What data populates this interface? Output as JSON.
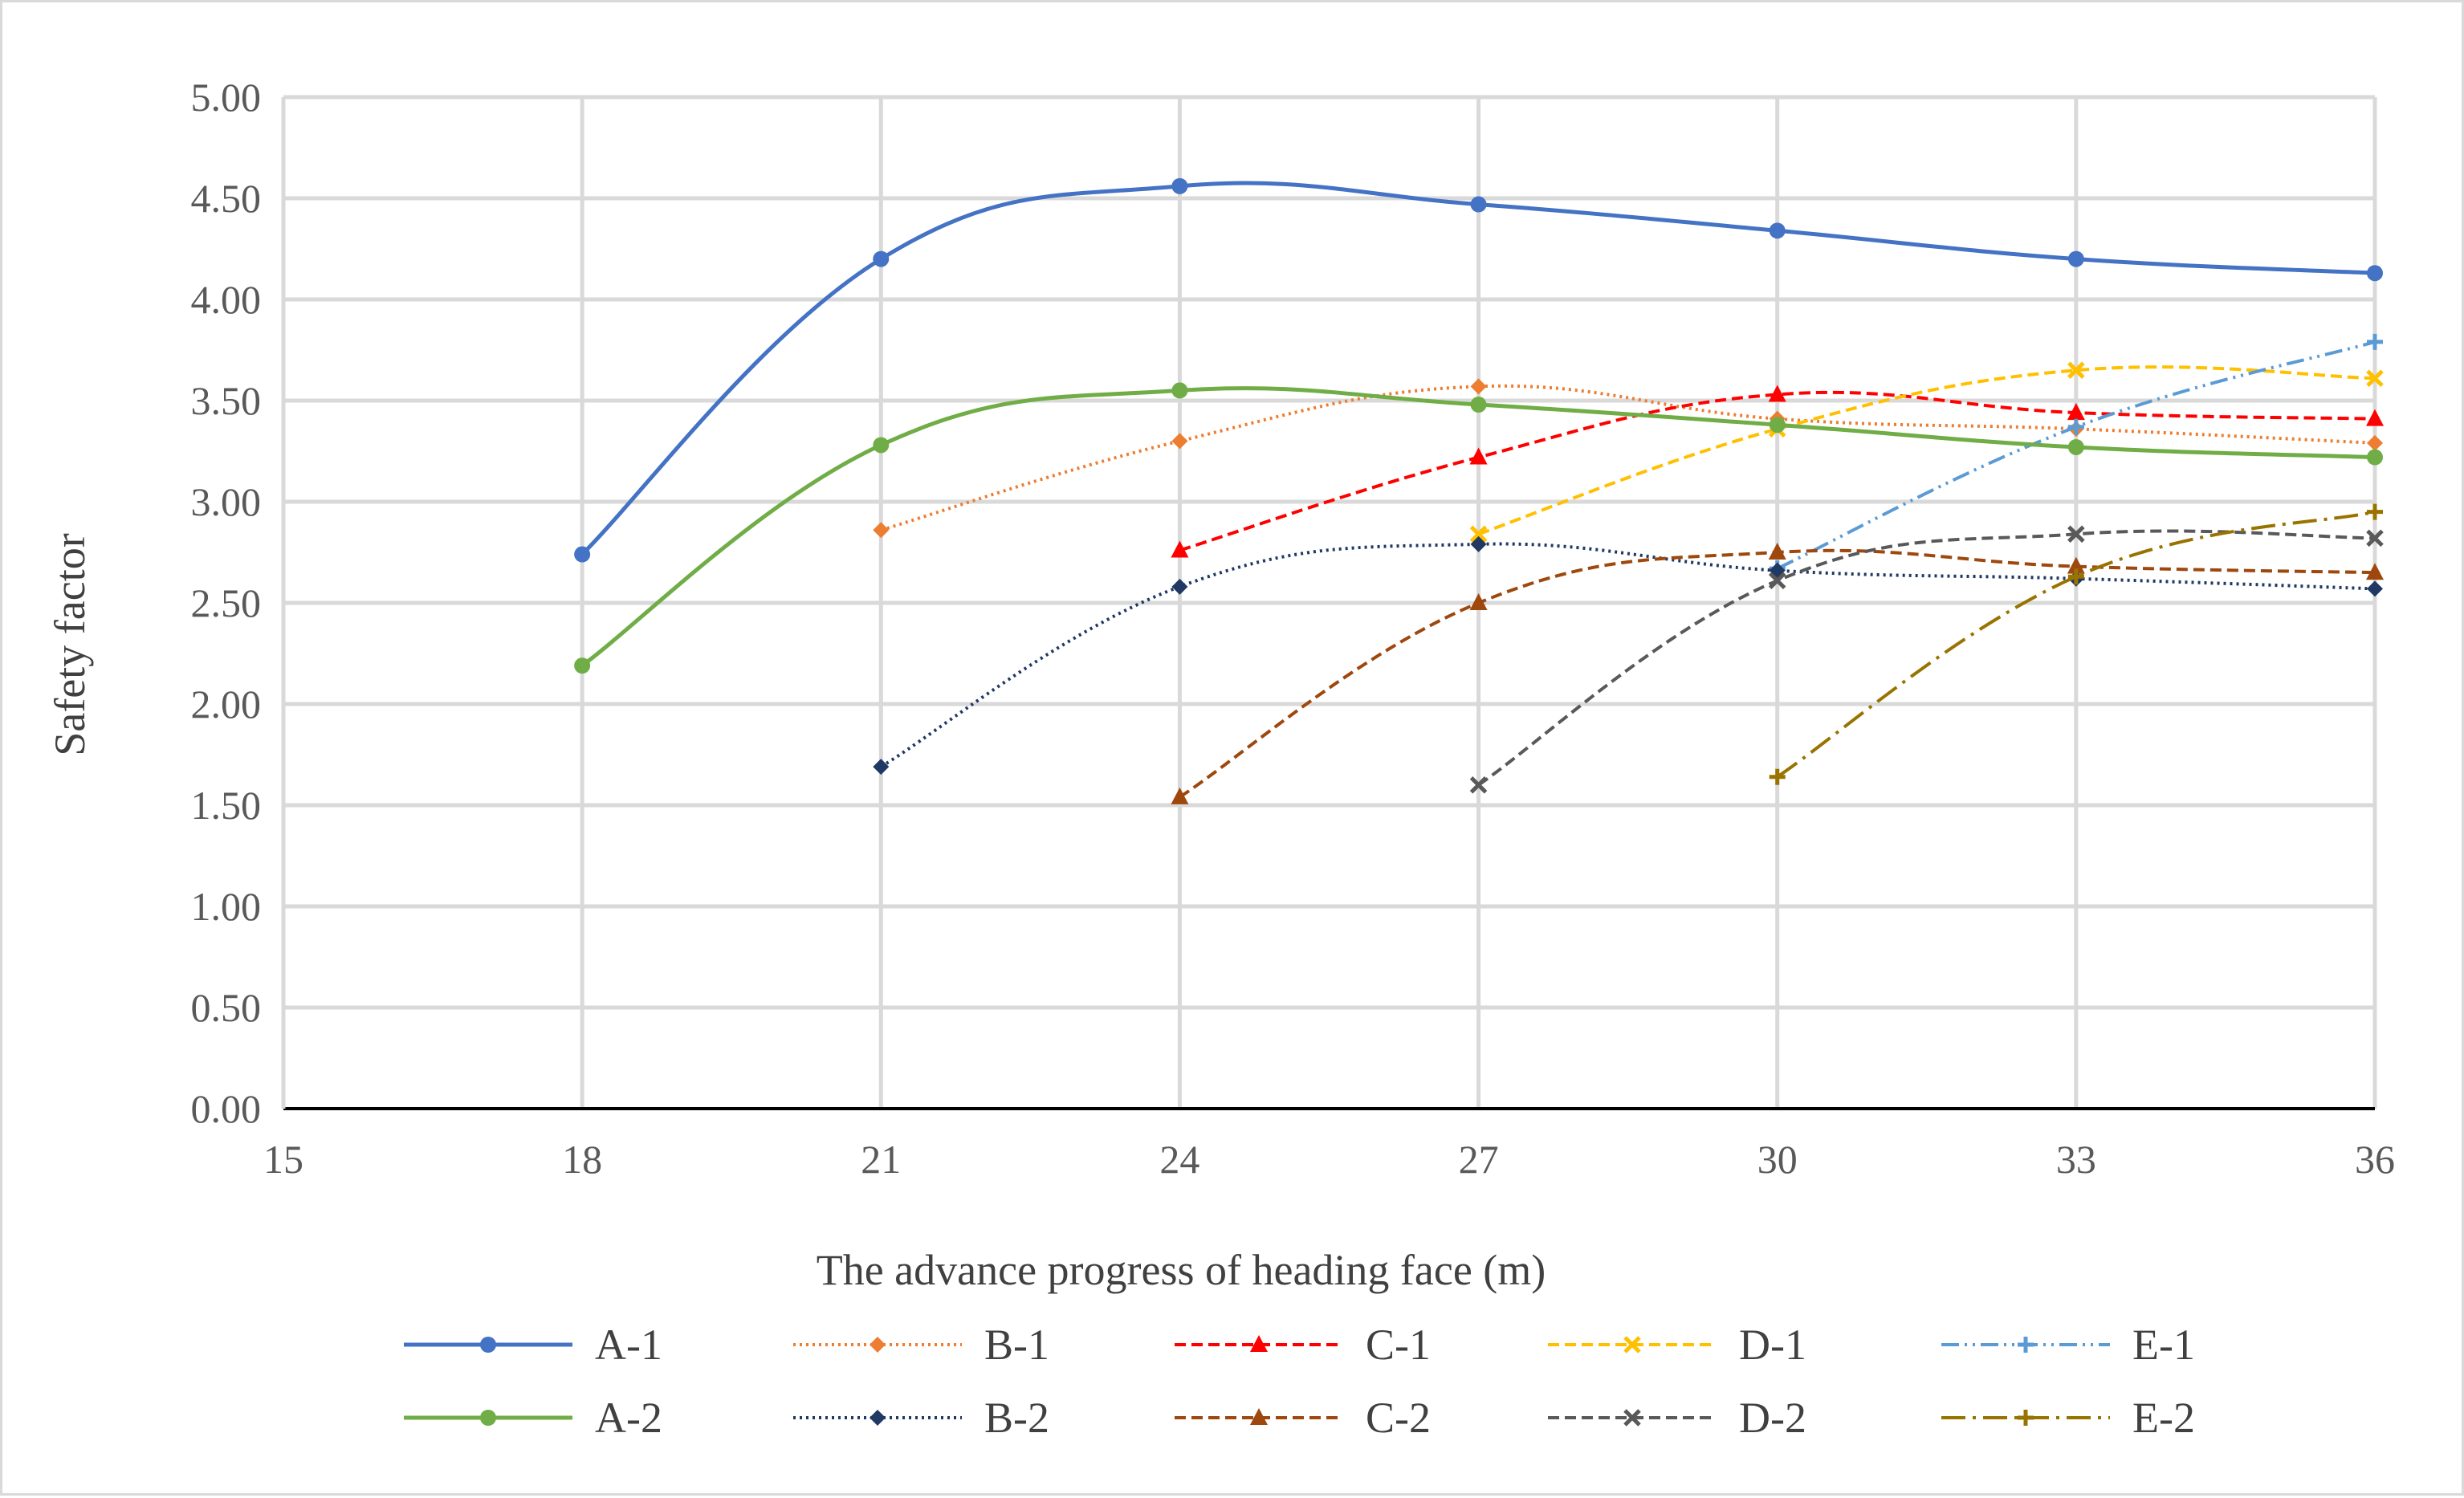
{
  "chart_data": {
    "type": "line",
    "title": "",
    "xlabel": "The advance progress of heading face (m)",
    "ylabel": "Safety factor",
    "xlim": [
      15,
      36
    ],
    "ylim": [
      0,
      5
    ],
    "x_ticks": [
      15,
      18,
      21,
      24,
      27,
      30,
      33,
      36
    ],
    "y_ticks": [
      "0.00",
      "0.50",
      "1.00",
      "1.50",
      "2.00",
      "2.50",
      "3.00",
      "3.50",
      "4.00",
      "4.50",
      "5.00"
    ],
    "grid": true,
    "smooth": true,
    "legend_position": "bottom",
    "series": [
      {
        "name": "A-1",
        "color": "#4472c4",
        "dash": "solid",
        "marker": "circle",
        "x": [
          18,
          21,
          24,
          27,
          30,
          33,
          36
        ],
        "y": [
          2.74,
          4.2,
          4.56,
          4.47,
          4.34,
          4.2,
          4.13
        ]
      },
      {
        "name": "B-1",
        "color": "#ed7d31",
        "dash": "dot",
        "marker": "diamond",
        "x": [
          21,
          24,
          27,
          30,
          33,
          36
        ],
        "y": [
          2.86,
          3.3,
          3.57,
          3.41,
          3.36,
          3.29
        ]
      },
      {
        "name": "C-1",
        "color": "#ff0000",
        "dash": "dash",
        "marker": "triangle",
        "x": [
          24,
          27,
          30,
          33,
          36
        ],
        "y": [
          2.76,
          3.22,
          3.53,
          3.44,
          3.41
        ]
      },
      {
        "name": "D-1",
        "color": "#ffc000",
        "dash": "dash",
        "marker": "x",
        "x": [
          27,
          30,
          33,
          36
        ],
        "y": [
          2.84,
          3.36,
          3.65,
          3.61
        ]
      },
      {
        "name": "E-1",
        "color": "#5b9bd5",
        "dash": "dashdotdot",
        "marker": "plus",
        "x": [
          30,
          33,
          36
        ],
        "y": [
          2.67,
          3.37,
          3.79
        ]
      },
      {
        "name": "A-2",
        "color": "#70ad47",
        "dash": "solid",
        "marker": "circle",
        "x": [
          18,
          21,
          24,
          27,
          30,
          33,
          36
        ],
        "y": [
          2.19,
          3.28,
          3.55,
          3.48,
          3.38,
          3.27,
          3.22
        ]
      },
      {
        "name": "B-2",
        "color": "#1f3864",
        "dash": "dot",
        "marker": "diamond",
        "x": [
          21,
          24,
          27,
          30,
          33,
          36
        ],
        "y": [
          1.69,
          2.58,
          2.79,
          2.66,
          2.62,
          2.57
        ]
      },
      {
        "name": "C-2",
        "color": "#9e480e",
        "dash": "dash",
        "marker": "triangle",
        "x": [
          24,
          27,
          30,
          33,
          36
        ],
        "y": [
          1.54,
          2.5,
          2.75,
          2.68,
          2.65
        ]
      },
      {
        "name": "D-2",
        "color": "#595959",
        "dash": "dash",
        "marker": "x",
        "x": [
          27,
          30,
          33,
          36
        ],
        "y": [
          1.6,
          2.61,
          2.84,
          2.82
        ]
      },
      {
        "name": "E-2",
        "color": "#997300",
        "dash": "longdashdot",
        "marker": "plus",
        "x": [
          30,
          33,
          36
        ],
        "y": [
          1.64,
          2.63,
          2.95
        ]
      }
    ]
  }
}
